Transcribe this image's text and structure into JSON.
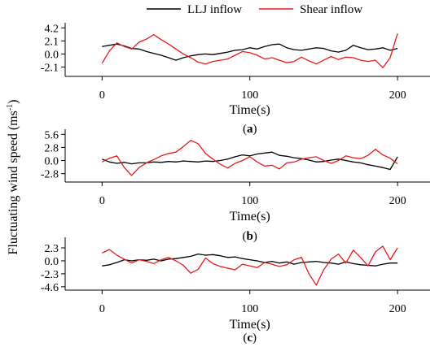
{
  "legend": {
    "series": [
      "LLJ inflow",
      "Shear inflow"
    ]
  },
  "y_axis_label": "Fluctuating wind speed (ms",
  "y_axis_label_sup": "-1",
  "y_axis_label_close": ")",
  "colors": {
    "LLJ inflow": "#000000",
    "Shear inflow": "#e8191c"
  },
  "chart_data": [
    {
      "type": "line",
      "panel_label": {
        "open": "(",
        "letter": "a",
        "close": ")"
      },
      "xlabel": "Time(s)",
      "x_ticks": [
        0,
        100,
        200
      ],
      "y_ticks": [
        4.2,
        2.1,
        0.0,
        -2.1
      ],
      "y_tick_labels": [
        "4.2",
        "2.1",
        "0.0",
        "-2.1"
      ],
      "xlim": [
        -25,
        222
      ],
      "ylim": [
        -3.6,
        4.5
      ],
      "grid": false,
      "legend_position": "top",
      "series": [
        {
          "name": "LLJ inflow",
          "x": [
            0,
            5,
            10,
            15,
            20,
            25,
            30,
            35,
            40,
            45,
            50,
            55,
            60,
            65,
            70,
            75,
            80,
            85,
            90,
            95,
            100,
            105,
            110,
            115,
            120,
            125,
            130,
            135,
            140,
            145,
            150,
            155,
            160,
            165,
            170,
            175,
            180,
            185,
            190,
            195,
            200
          ],
          "y": [
            1.2,
            1.4,
            1.6,
            1.3,
            0.9,
            0.8,
            0.4,
            0.1,
            -0.2,
            -0.6,
            -1.0,
            -0.6,
            -0.3,
            -0.1,
            0.0,
            -0.1,
            0.1,
            0.3,
            0.6,
            0.7,
            1.0,
            0.8,
            1.2,
            1.5,
            1.6,
            1.0,
            0.7,
            0.6,
            0.8,
            1.0,
            0.9,
            0.5,
            0.3,
            0.6,
            1.4,
            1.0,
            0.7,
            0.8,
            1.0,
            0.6,
            0.9
          ]
        },
        {
          "name": "Shear inflow",
          "x": [
            0,
            5,
            10,
            15,
            20,
            25,
            30,
            35,
            40,
            45,
            50,
            55,
            60,
            65,
            70,
            75,
            80,
            85,
            90,
            95,
            100,
            105,
            110,
            115,
            120,
            125,
            130,
            135,
            140,
            145,
            150,
            155,
            160,
            165,
            170,
            175,
            180,
            185,
            190,
            195,
            200
          ],
          "y": [
            -1.5,
            0.5,
            1.8,
            1.2,
            0.8,
            1.9,
            2.4,
            3.1,
            2.3,
            1.6,
            0.8,
            0.0,
            -0.6,
            -1.3,
            -1.6,
            -1.2,
            -1.0,
            -0.8,
            -0.2,
            0.4,
            0.2,
            -0.2,
            -0.8,
            -0.6,
            -1.0,
            -1.4,
            -1.2,
            -0.5,
            -1.1,
            -1.6,
            -1.0,
            -0.4,
            -0.9,
            -0.5,
            -0.6,
            -1.0,
            -1.2,
            -1.0,
            -2.2,
            -0.6,
            3.3
          ]
        }
      ]
    },
    {
      "type": "line",
      "panel_label": {
        "open": "(",
        "letter": "b",
        "close": ")"
      },
      "xlabel": "Time(s)",
      "x_ticks": [
        0,
        100,
        200
      ],
      "y_ticks": [
        5.6,
        2.8,
        0.0,
        -2.8
      ],
      "y_tick_labels": [
        "5.6",
        "2.8",
        "0.0",
        "-2.8"
      ],
      "xlim": [
        -25,
        222
      ],
      "ylim": [
        -4.6,
        6.0
      ],
      "grid": false,
      "series": [
        {
          "name": "LLJ inflow",
          "x": [
            0,
            5,
            10,
            15,
            20,
            25,
            30,
            35,
            40,
            45,
            50,
            55,
            60,
            65,
            70,
            75,
            80,
            85,
            90,
            95,
            100,
            105,
            110,
            115,
            120,
            125,
            130,
            135,
            140,
            145,
            150,
            155,
            160,
            165,
            170,
            175,
            180,
            185,
            190,
            195,
            200
          ],
          "y": [
            0.3,
            -0.3,
            -0.6,
            -0.4,
            -0.7,
            -0.5,
            -0.5,
            -0.3,
            -0.4,
            -0.2,
            -0.3,
            -0.1,
            -0.2,
            -0.3,
            -0.1,
            -0.2,
            0.0,
            0.3,
            0.8,
            1.2,
            1.0,
            1.4,
            1.6,
            1.8,
            1.1,
            0.9,
            0.6,
            0.4,
            0.1,
            -0.3,
            -0.2,
            0.1,
            0.3,
            0.0,
            -0.3,
            -0.5,
            -0.9,
            -1.2,
            -1.5,
            -1.9,
            0.8
          ]
        },
        {
          "name": "Shear inflow",
          "x": [
            0,
            5,
            10,
            15,
            20,
            25,
            30,
            35,
            40,
            45,
            50,
            55,
            60,
            65,
            70,
            75,
            80,
            85,
            90,
            95,
            100,
            105,
            110,
            115,
            120,
            125,
            130,
            135,
            140,
            145,
            150,
            155,
            160,
            165,
            170,
            175,
            180,
            185,
            190,
            195,
            200
          ],
          "y": [
            -0.3,
            0.5,
            1.0,
            -1.5,
            -3.2,
            -1.5,
            -0.5,
            0.2,
            1.0,
            1.5,
            1.8,
            3.0,
            4.3,
            3.6,
            1.5,
            0.3,
            -0.8,
            -1.6,
            -0.6,
            0.0,
            0.8,
            -0.3,
            -1.2,
            -1.0,
            -1.8,
            -0.5,
            -0.3,
            0.3,
            0.6,
            0.8,
            0.0,
            -0.6,
            0.0,
            1.0,
            0.6,
            0.4,
            1.1,
            2.4,
            1.2,
            0.5,
            -0.7
          ]
        }
      ]
    },
    {
      "type": "line",
      "panel_label": {
        "open": "(",
        "letter": "c",
        "close": ")"
      },
      "xlabel": "Time(s)",
      "x_ticks": [
        0,
        100,
        200
      ],
      "y_ticks": [
        2.3,
        0.0,
        -2.3,
        -4.6
      ],
      "y_tick_labels": [
        "2.3",
        "0.0",
        "-2.3",
        "-4.6"
      ],
      "xlim": [
        -25,
        222
      ],
      "ylim": [
        -5.2,
        3.6
      ],
      "grid": false,
      "series": [
        {
          "name": "LLJ inflow",
          "x": [
            0,
            5,
            10,
            15,
            20,
            25,
            30,
            35,
            40,
            45,
            50,
            55,
            60,
            65,
            70,
            75,
            80,
            85,
            90,
            95,
            100,
            105,
            110,
            115,
            120,
            125,
            130,
            135,
            140,
            145,
            150,
            155,
            160,
            165,
            170,
            175,
            180,
            185,
            190,
            195,
            200
          ],
          "y": [
            -0.9,
            -0.7,
            -0.3,
            0.2,
            0.0,
            0.2,
            0.1,
            0.3,
            0.0,
            0.3,
            0.4,
            0.6,
            0.8,
            1.2,
            1.0,
            1.1,
            0.9,
            0.6,
            0.7,
            0.4,
            0.2,
            0.0,
            -0.3,
            -0.1,
            -0.4,
            -0.2,
            -0.6,
            -0.3,
            -0.2,
            -0.1,
            -0.3,
            -0.4,
            -0.6,
            -0.2,
            -0.5,
            -0.7,
            -0.8,
            -0.9,
            -0.6,
            -0.4,
            -0.4
          ]
        },
        {
          "name": "Shear inflow",
          "x": [
            0,
            5,
            10,
            15,
            20,
            25,
            30,
            35,
            40,
            45,
            50,
            55,
            60,
            65,
            70,
            75,
            80,
            85,
            90,
            95,
            100,
            105,
            110,
            115,
            120,
            125,
            130,
            135,
            140,
            145,
            150,
            155,
            160,
            165,
            170,
            175,
            180,
            185,
            190,
            195,
            200
          ],
          "y": [
            1.4,
            2.0,
            1.0,
            0.3,
            -0.4,
            0.2,
            -0.1,
            -0.5,
            0.2,
            0.6,
            0.0,
            -0.8,
            -2.2,
            -1.5,
            0.5,
            -0.5,
            -1.0,
            -1.3,
            -1.6,
            -0.6,
            -0.9,
            -1.2,
            -0.3,
            -0.6,
            -1.0,
            -0.7,
            0.2,
            0.6,
            -2.3,
            -4.3,
            -1.6,
            0.3,
            1.2,
            -0.4,
            1.9,
            0.6,
            -0.9,
            1.6,
            2.6,
            0.2,
            2.3
          ]
        }
      ]
    }
  ]
}
